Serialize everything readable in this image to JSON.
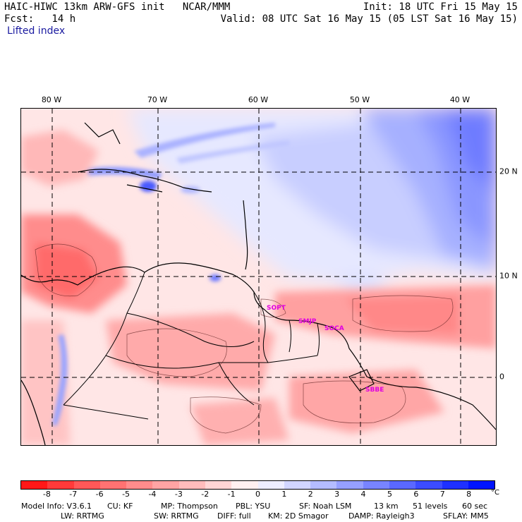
{
  "header": {
    "title": "HAIC-HIWC 13km ARW-GFS init   NCAR/MMM",
    "init": "Init: 18 UTC Fri 15 May 15",
    "fcst": "Fcst:   14 h",
    "valid": "Valid: 08 UTC Sat 16 May 15 (05 LST Sat 16 May 15)",
    "subtitle": "Lifted index"
  },
  "axes": {
    "lon_labels": [
      "80 W",
      "70 W",
      "60 W",
      "50 W",
      "40 W"
    ],
    "lat_labels": [
      "20 N",
      "10 N",
      "0"
    ]
  },
  "stations": [
    "SOPT",
    "SMJP",
    "SOCA",
    "SBBE"
  ],
  "colorbar": {
    "ticks": [
      "-8",
      "-7",
      "-6",
      "-5",
      "-4",
      "-3",
      "-2",
      "-1",
      "0",
      "1",
      "2",
      "3",
      "4",
      "5",
      "6",
      "7",
      "8"
    ],
    "unit": "°C",
    "colors": [
      "#ff1818",
      "#ff3a3a",
      "#ff5858",
      "#ff7272",
      "#ff8c8c",
      "#ffa4a4",
      "#ffbcbc",
      "#ffd6d6",
      "#fff0f0",
      "#eeeeff",
      "#d2d6ff",
      "#b4bcff",
      "#96a0ff",
      "#7884ff",
      "#5a68ff",
      "#3c4cff",
      "#1e30ff",
      "#0014ff"
    ]
  },
  "footer": {
    "line1": [
      "Model Info: V3.6.1",
      "CU: KF",
      "MP: Thompson",
      "PBL: YSU",
      "SF: Noah LSM",
      "13 km",
      "51 levels",
      "60 sec"
    ],
    "line2": [
      "LW: RRTMG",
      "SW: RRTMG",
      "DIFF: full",
      "KM: 2D Smagor",
      "DAMP: Rayleigh3",
      "SFLAY: MM5"
    ]
  },
  "colors": {
    "unstable": "#ff8c8c",
    "stable": "#5a68ff",
    "station": "#e000e0"
  }
}
